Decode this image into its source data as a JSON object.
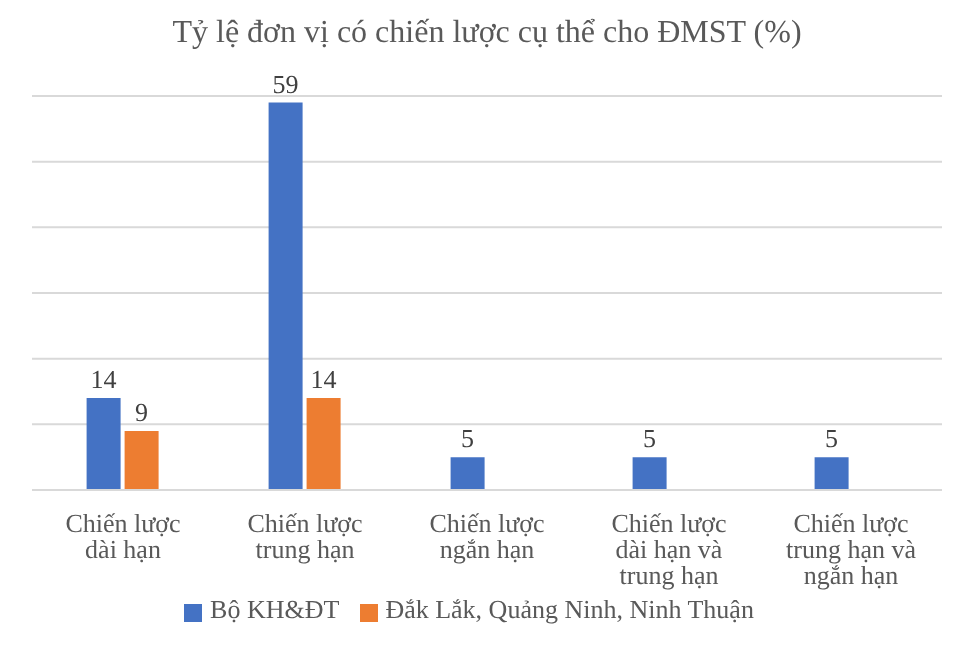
{
  "chart_data": {
    "type": "bar",
    "title": "Tỷ lệ đơn vị có chiến lược cụ thể cho ĐMST (%)",
    "categories": [
      "Chiến lược dài hạn",
      "Chiến lược trung hạn",
      "Chiến lược ngắn hạn",
      "Chiến lược dài hạn và trung hạn",
      "Chiến lược trung hạn và ngắn hạn"
    ],
    "series": [
      {
        "name": "Bộ KH&ĐT",
        "color": "#4472c4",
        "values": [
          14,
          59,
          5,
          5,
          5
        ]
      },
      {
        "name": "Đắk Lắk, Quảng Ninh, Ninh Thuận",
        "color": "#ed7d31",
        "values": [
          9,
          14,
          null,
          null,
          null
        ]
      }
    ],
    "ylim": [
      0,
      60
    ],
    "yticks": [
      0,
      10,
      20,
      30,
      40,
      50,
      60
    ],
    "tick_labels": "x",
    "grid": "y",
    "legend": "bottom",
    "data_labels": true
  }
}
